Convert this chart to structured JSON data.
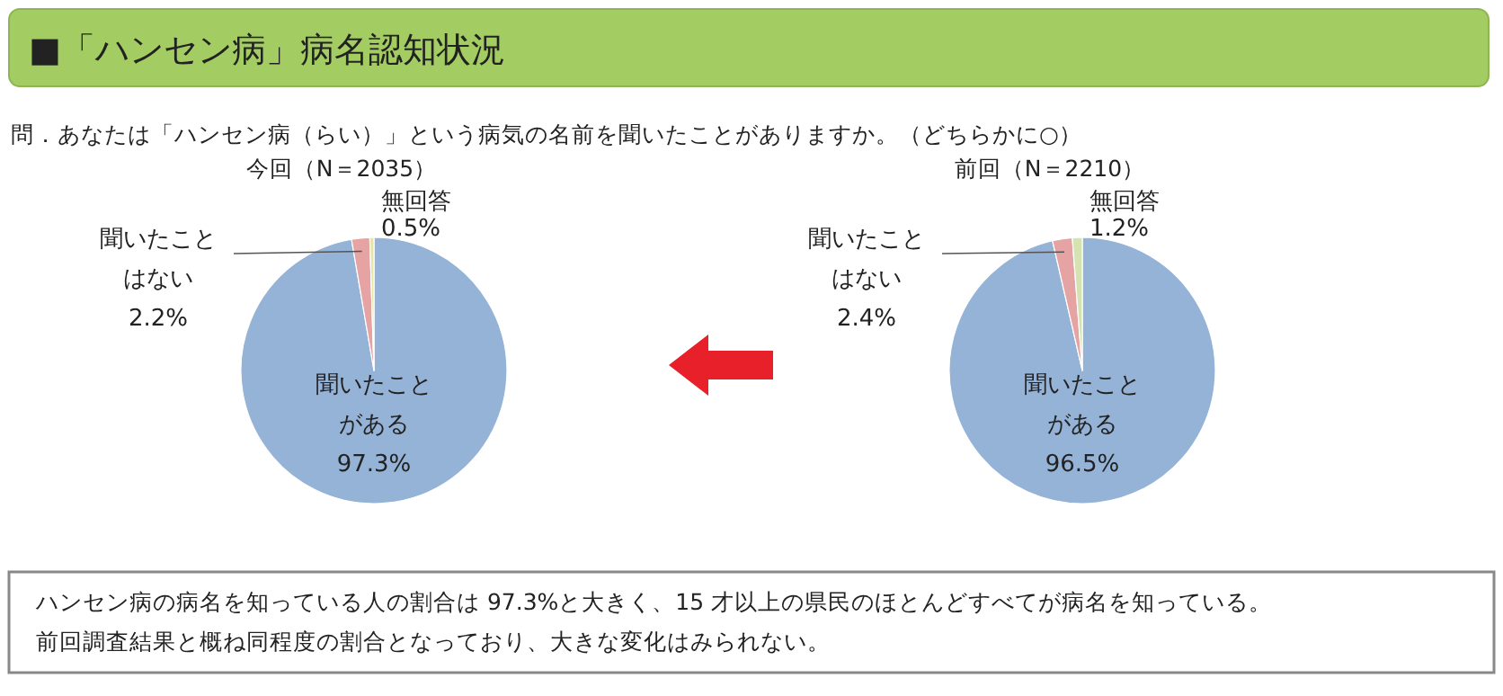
{
  "chart_data": [
    {
      "type": "other",
      "title": "■「ハンセン病」病名認知状況",
      "subtitle": "問．あなたは「ハンセン病（らい）」という病気の名前を聞いたことがありますか。（どちらかに○）",
      "annotations": [
        "ハンセン病の病名を知っている人の割合は 97.3%と大きく、15 才以上の県民のほとんどすべてが病名を知っている。",
        "前回調査結果と概ね同程度の割合となっており、大きな変化はみられない。"
      ]
    },
    {
      "type": "pie",
      "title": "今回（N＝2035）",
      "categories": [
        "聞いたことがある",
        "聞いたことはない",
        "無回答"
      ],
      "values": [
        97.3,
        2.2,
        0.5
      ],
      "value_labels": [
        "97.3%",
        "2.2%",
        "0.5%"
      ],
      "colors": [
        "#95b3d7",
        "#e6a3a3",
        "#e4e6a8"
      ]
    },
    {
      "type": "pie",
      "title": "前回（N＝2210）",
      "categories": [
        "聞いたことがある",
        "聞いたことはない",
        "無回答"
      ],
      "values": [
        96.5,
        2.4,
        1.2
      ],
      "value_labels": [
        "96.5%",
        "2.4%",
        "1.2%"
      ],
      "colors": [
        "#95b3d7",
        "#e6a3a3",
        "#d3e4b0"
      ]
    }
  ]
}
